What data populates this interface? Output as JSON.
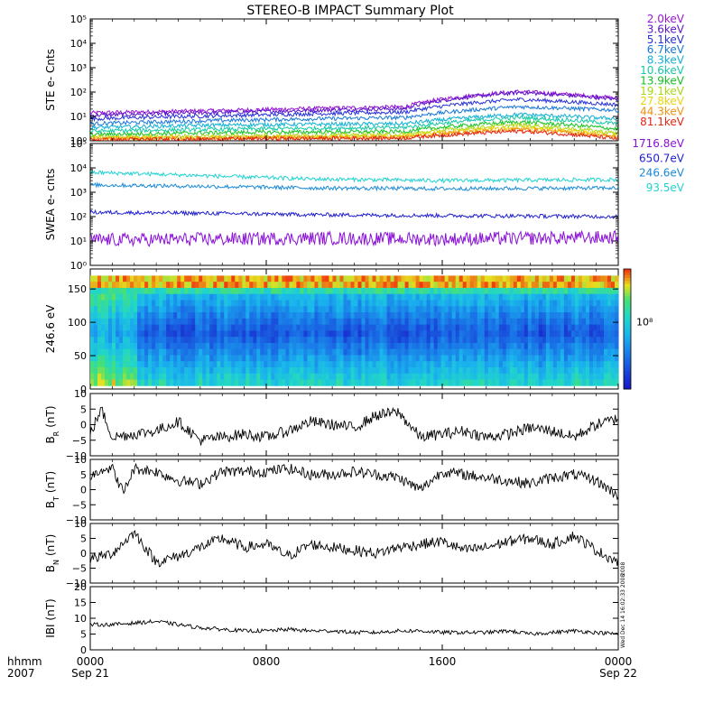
{
  "title": "STEREO-B IMPACT Summary Plot",
  "footer": {
    "x_axis_label": "hhmm",
    "year": "2007",
    "tick_labels": [
      "0000",
      "0800",
      "1600",
      "0000"
    ],
    "date_labels": [
      "Sep 21",
      "",
      "",
      "Sep 22"
    ],
    "creation_stamp_1": "Wed Dec 14 16:02:33 2008",
    "creation_stamp_2": "2008"
  },
  "chart_data": [
    {
      "type": "line",
      "name": "ste",
      "ylabel": "STE e- Cnts",
      "yscale": "log",
      "ylim": [
        1,
        100000
      ],
      "ytick_values": [
        1,
        10,
        100,
        1000,
        10000,
        100000
      ],
      "ytick_labels": [
        "10⁰",
        "10¹",
        "10²",
        "10³",
        "10⁴",
        "10⁵"
      ],
      "x_hours": [
        0,
        6.5,
        14.3,
        19.5,
        24
      ],
      "series": [
        {
          "name": "2.0keV",
          "color": "#9a16d6",
          "values": [
            14,
            18,
            25,
            105,
            55
          ]
        },
        {
          "name": "3.6keV",
          "color": "#5b14c8",
          "values": [
            11,
            15,
            21,
            95,
            50
          ]
        },
        {
          "name": "5.1keV",
          "color": "#2630d8",
          "values": [
            8,
            11,
            15,
            50,
            30
          ]
        },
        {
          "name": "6.7keV",
          "color": "#1877d8",
          "values": [
            5,
            7,
            9,
            25,
            18
          ]
        },
        {
          "name": "8.3keV",
          "color": "#10b0d6",
          "values": [
            3.5,
            4.5,
            5,
            12,
            8
          ]
        },
        {
          "name": "10.6keV",
          "color": "#16c8a8",
          "values": [
            2.5,
            3,
            3.5,
            9,
            5
          ]
        },
        {
          "name": "13.9keV",
          "color": "#12c220",
          "values": [
            1.8,
            2.2,
            2.4,
            6,
            3
          ]
        },
        {
          "name": "19.1keV",
          "color": "#a8d814",
          "values": [
            1.4,
            1.6,
            1.8,
            4.5,
            2
          ]
        },
        {
          "name": "27.8keV",
          "color": "#ecd410",
          "values": [
            1.3,
            1.4,
            1.6,
            3.5,
            1.6
          ]
        },
        {
          "name": "44.3keV",
          "color": "#f29010",
          "values": [
            1.2,
            1.3,
            1.4,
            3,
            1.4
          ]
        },
        {
          "name": "81.1keV",
          "color": "#e42412",
          "values": [
            1.1,
            1.2,
            1.3,
            2.5,
            1.2
          ]
        }
      ]
    },
    {
      "type": "line",
      "name": "swea",
      "ylabel": "SWEA e- cnts",
      "yscale": "log",
      "ylim": [
        1,
        100000
      ],
      "ytick_values": [
        1,
        10,
        100,
        1000,
        10000,
        100000
      ],
      "ytick_labels": [
        "10⁰",
        "10¹",
        "10²",
        "10³",
        "10⁴",
        "10⁵"
      ],
      "x_hours": [
        0,
        6,
        10,
        16,
        24
      ],
      "series": [
        {
          "name": "1716.8eV",
          "color": "#8a10d8",
          "values": [
            11,
            12,
            13,
            12,
            14
          ]
        },
        {
          "name": "650.7eV",
          "color": "#2020d0",
          "values": [
            150,
            135,
            120,
            110,
            100
          ]
        },
        {
          "name": "246.6eV",
          "color": "#1a8ad8",
          "values": [
            2000,
            1700,
            1500,
            1400,
            1500
          ]
        },
        {
          "name": "93.5eV",
          "color": "#20d2d2",
          "values": [
            6500,
            4500,
            3500,
            3000,
            3300
          ]
        }
      ]
    },
    {
      "type": "heatmap",
      "name": "pad",
      "ylabel": "246.6 eV",
      "ylim": [
        0,
        180
      ],
      "ytick_values": [
        0,
        50,
        100,
        150
      ],
      "ytick_labels": [
        "0",
        "50",
        "100",
        "150"
      ],
      "colorbar_label": "10⁸"
    },
    {
      "type": "line",
      "name": "br",
      "ylabel": "BR (nT)",
      "ylabel_main": "B",
      "ylabel_sub": "R",
      "ylabel_unit": "(nT)",
      "ylim": [
        -10,
        10
      ],
      "ytick_values": [
        -10,
        -5,
        0,
        5,
        10
      ],
      "ytick_labels": [
        "−10",
        "−5",
        "0",
        "5",
        "10"
      ],
      "x_hours": [
        0,
        0.5,
        1,
        2,
        3,
        4,
        5,
        6,
        7,
        8,
        9,
        10,
        11,
        12,
        13,
        14,
        15,
        16,
        17,
        18,
        19,
        20,
        21,
        22,
        23,
        24
      ],
      "values": [
        -3,
        5,
        -4,
        -3,
        -2,
        1,
        -5,
        -4,
        -3,
        -4,
        -2,
        1,
        0,
        -1,
        3,
        4,
        -4,
        -3,
        -2,
        -4,
        -3,
        -1,
        -2,
        -4,
        0,
        2
      ]
    },
    {
      "type": "line",
      "name": "bt",
      "ylabel": "BT (nT)",
      "ylabel_main": "B",
      "ylabel_sub": "T",
      "ylabel_unit": "(nT)",
      "ylim": [
        -10,
        10
      ],
      "ytick_values": [
        -10,
        -5,
        0,
        5,
        10
      ],
      "ytick_labels": [
        "−10",
        "−5",
        "0",
        "5",
        "10"
      ],
      "x_hours": [
        0,
        0.5,
        1,
        1.5,
        2,
        3,
        4,
        5,
        6,
        7,
        8,
        9,
        10,
        11,
        12,
        13,
        14,
        15,
        16,
        17,
        18,
        19,
        20,
        21,
        22,
        23,
        24
      ],
      "values": [
        4,
        7,
        7,
        -1,
        7,
        6,
        3,
        2,
        6,
        6,
        6,
        7,
        5,
        5,
        6,
        5,
        4,
        0,
        6,
        5,
        4,
        3,
        2,
        4,
        5,
        3,
        -2
      ]
    },
    {
      "type": "line",
      "name": "bn",
      "ylabel": "BN (nT)",
      "ylabel_main": "B",
      "ylabel_sub": "N",
      "ylabel_unit": "(nT)",
      "ylim": [
        -10,
        10
      ],
      "ytick_values": [
        -10,
        -5,
        0,
        5,
        10
      ],
      "ytick_labels": [
        "−10",
        "−5",
        "0",
        "5",
        "10"
      ],
      "x_hours": [
        0,
        1,
        2,
        3,
        4,
        5,
        6,
        7,
        8,
        9,
        10,
        11,
        12,
        13,
        14,
        15,
        16,
        17,
        18,
        19,
        20,
        21,
        22,
        23,
        24
      ],
      "values": [
        -2,
        0,
        7,
        -3,
        -1,
        2,
        5,
        2,
        3,
        -1,
        3,
        2,
        1,
        0,
        2,
        3,
        4,
        1,
        2,
        4,
        5,
        3,
        6,
        1,
        -3
      ]
    },
    {
      "type": "line",
      "name": "bmag",
      "ylabel": "IBI (nT)",
      "ylim": [
        0,
        20
      ],
      "ytick_values": [
        0,
        5,
        10,
        15,
        20
      ],
      "ytick_labels": [
        "0",
        "5",
        "10",
        "15",
        "20"
      ],
      "x_hours": [
        0,
        1,
        2,
        3,
        4,
        5,
        6,
        7,
        8,
        9,
        10,
        11,
        12,
        13,
        14,
        15,
        16,
        17,
        18,
        19,
        20,
        21,
        22,
        23,
        24
      ],
      "values": [
        8,
        8,
        8.5,
        9,
        8,
        7,
        6.5,
        6,
        6,
        6.5,
        6,
        6,
        5.5,
        5.5,
        6,
        6,
        5.5,
        5.5,
        5.5,
        6,
        5,
        5.5,
        6,
        5.5,
        5
      ]
    }
  ]
}
